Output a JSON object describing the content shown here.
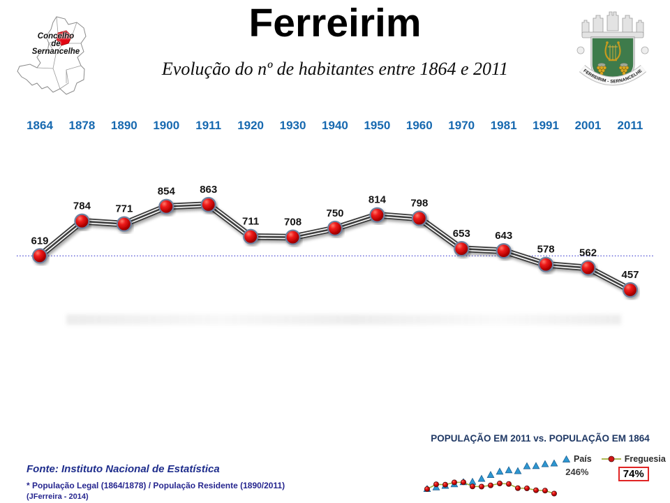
{
  "header": {
    "title": "Ferreirim",
    "subtitle": "Evolução do nº de habitantes entre 1864 e 2011",
    "map_caption_lines": [
      "Concelho",
      "de",
      "Sernancelhe"
    ],
    "crest_ribbon_text": "FERREIRIM - SERNANCELHE"
  },
  "chart_data": {
    "type": "line",
    "title": "Evolução do nº de habitantes entre 1864 e 2011",
    "categories": [
      "1864",
      "1878",
      "1890",
      "1900",
      "1911",
      "1920",
      "1930",
      "1940",
      "1950",
      "1960",
      "1970",
      "1981",
      "1991",
      "2001",
      "2011"
    ],
    "values": [
      619,
      784,
      771,
      854,
      863,
      711,
      708,
      750,
      814,
      798,
      653,
      643,
      578,
      562,
      457
    ],
    "baseline_value": 619,
    "grid": "off",
    "legend_position": "none",
    "colors": {
      "year_label": "#1769b0",
      "marker": "#d40d0d",
      "line": "#3d3d3d",
      "value_label": "#141414",
      "baseline_line": "#5b5bd6"
    }
  },
  "comparison_chart": {
    "type": "line",
    "title": "POPULAÇÃO EM 2011 vs. POPULAÇÃO EM 1864",
    "title_color": "#1f3864",
    "points_per_series": 15,
    "series": [
      {
        "name": "País",
        "marker": "triangle",
        "color": "#2e97d1",
        "values_pct": [
          100,
          109,
          118,
          127,
          139,
          141,
          158,
          180,
          199,
          207,
          202,
          230,
          231,
          242,
          246
        ],
        "final_value_label": "246%"
      },
      {
        "name": "Freguesia",
        "marker": "dot",
        "color": "#cf1717",
        "line_color": "#9fae3a",
        "values_pct": [
          100,
          127,
          125,
          138,
          139,
          115,
          114,
          121,
          132,
          129,
          105,
          104,
          93,
          91,
          74
        ],
        "final_value_label": "74%",
        "highlight_box_color": "#e02424"
      }
    ],
    "legend_position": "right"
  },
  "footer": {
    "source": "Fonte: Instituto Nacional de Estatística",
    "note": "* População Legal (1864/1878) / População Residente (1890/2011)",
    "credit": "(JFerreira - 2014)"
  }
}
